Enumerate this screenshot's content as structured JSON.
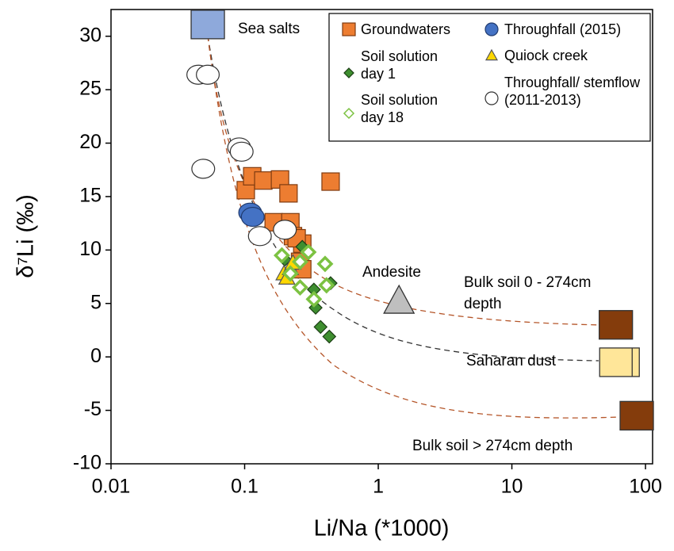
{
  "chart_data": {
    "type": "scatter",
    "x_label": "Li/Na (*1000)",
    "y_label": "δ⁷Li (‰)",
    "x_log": true,
    "xlim": [
      0.01,
      113
    ],
    "xticks": [
      0.01,
      0.1,
      1,
      10,
      100
    ],
    "ylim": [
      -10,
      32.5
    ],
    "yticks": [
      -10,
      -5,
      0,
      5,
      10,
      15,
      20,
      25,
      30
    ],
    "series": [
      {
        "name": "Groundwaters",
        "color": "#ED7D31",
        "edge": "#7f3b10",
        "marker": "square",
        "x": [
          0.102,
          0.114,
          0.138,
          0.184,
          0.213,
          0.44,
          0.165,
          0.22,
          0.23,
          0.27,
          0.245,
          0.26,
          0.27
        ],
        "values": [
          15.6,
          16.9,
          16.5,
          16.6,
          15.3,
          16.4,
          12.6,
          12.6,
          11.3,
          10.6,
          11.1,
          8.9,
          8.2
        ]
      },
      {
        "name": "Throughfall (2015)",
        "color": "#4472C4",
        "edge": "#1f3a6e",
        "marker": "circle",
        "x": [
          0.11,
          0.115
        ],
        "values": [
          13.5,
          13.1
        ]
      },
      {
        "name": "Soil solution day 1",
        "color": "#3E8E2F",
        "edge": "#1b3d14",
        "marker": "diamond",
        "x": [
          0.27,
          0.33,
          0.34,
          0.37,
          0.43,
          0.44,
          0.2
        ],
        "values": [
          10.3,
          6.3,
          4.6,
          2.8,
          1.9,
          6.9,
          9.1
        ]
      },
      {
        "name": "Quiock creek",
        "color": "#FFD700",
        "edge": "#555555",
        "marker": "triangle",
        "x": [
          0.197,
          0.207,
          0.22,
          0.23
        ],
        "values": [
          7.8,
          7.4,
          8.3,
          8.8
        ]
      },
      {
        "name": "Soil solution day 18",
        "color": "#7CC242",
        "edge": "#7CC242",
        "marker": "open-diamond",
        "x": [
          0.19,
          0.26,
          0.3,
          0.4,
          0.26,
          0.33,
          0.41,
          0.22
        ],
        "values": [
          9.5,
          8.9,
          9.8,
          8.7,
          6.5,
          5.4,
          6.7,
          7.8
        ]
      },
      {
        "name": "Throughfall/ stemflow (2011-2013)",
        "color": "#FFFFFF",
        "edge": "#333333",
        "marker": "circle",
        "x": [
          0.045,
          0.053,
          0.049,
          0.091,
          0.095,
          0.13,
          0.2
        ],
        "values": [
          26.4,
          26.4,
          17.6,
          19.6,
          19.2,
          11.3,
          11.9
        ]
      }
    ],
    "annotated_points": [
      {
        "label": "Sea salts",
        "x": 0.053,
        "y": 31.1,
        "color": "#8EA9DB",
        "marker": "big-square"
      },
      {
        "label": "Andesite",
        "x": 1.43,
        "y": 5.2,
        "color": "#BFBFBF",
        "marker": "big-triangle"
      },
      {
        "label": "Bulk soil 0 - 274cm depth",
        "x": 60,
        "y": 3.0,
        "color": "#843C0C",
        "marker": "big-square"
      },
      {
        "label": "Saharan dust",
        "x": 63,
        "y": -0.5,
        "color": "#FFE699",
        "marker": "dust"
      },
      {
        "label": "Bulk soil > 274cm depth",
        "x": 86,
        "y": -5.5,
        "color": "#843C0C",
        "marker": "big-square"
      }
    ]
  }
}
